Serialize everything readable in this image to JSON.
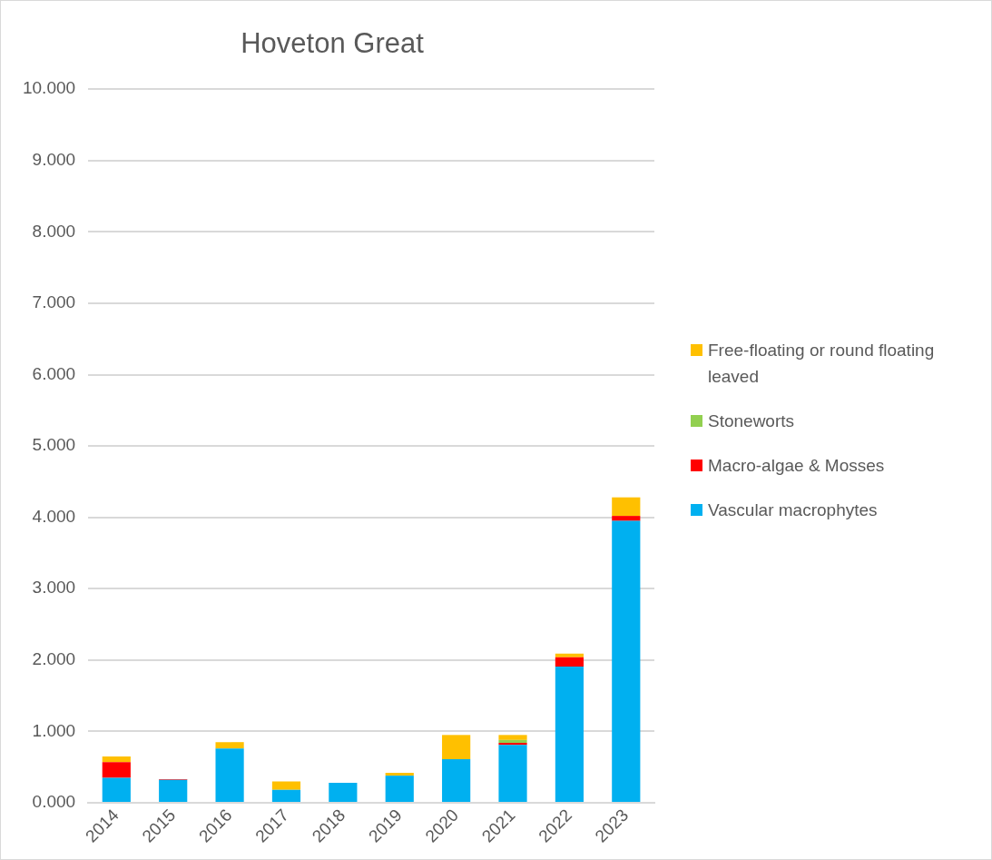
{
  "chart_data": {
    "type": "bar",
    "title": "Hoveton Great",
    "stacked": true,
    "legend": "right",
    "grid": "y",
    "categories": [
      "2014",
      "2015",
      "2016",
      "2017",
      "2018",
      "2019",
      "2020",
      "2021",
      "2022",
      "2023"
    ],
    "ylim": [
      0,
      10
    ],
    "yticks": [
      {
        "value": 0,
        "label": "0.000"
      },
      {
        "value": 1,
        "label": "1.000"
      },
      {
        "value": 2,
        "label": "2.000"
      },
      {
        "value": 3,
        "label": "3.000"
      },
      {
        "value": 4,
        "label": "4.000"
      },
      {
        "value": 5,
        "label": "5.000"
      },
      {
        "value": 6,
        "label": "6.000"
      },
      {
        "value": 7,
        "label": "7.000"
      },
      {
        "value": 8,
        "label": "8.000"
      },
      {
        "value": 9,
        "label": "9.000"
      },
      {
        "value": 10,
        "label": "10.000"
      }
    ],
    "series": [
      {
        "name": "Vascular macrophytes",
        "color": "#00b0f0",
        "values": [
          0.35,
          0.32,
          0.76,
          0.18,
          0.28,
          0.38,
          0.61,
          0.81,
          1.91,
          3.95
        ]
      },
      {
        "name": "Macro-algae & Mosses",
        "color": "#ff0000",
        "values": [
          0.22,
          0.01,
          0,
          0,
          0,
          0,
          0,
          0.03,
          0.13,
          0.07
        ]
      },
      {
        "name": "Stoneworts",
        "color": "#92d050",
        "values": [
          0,
          0,
          0,
          0,
          0,
          0,
          0,
          0.04,
          0,
          0
        ]
      },
      {
        "name": "Free-floating or round floating leaved",
        "color": "#ffc000",
        "values": [
          0.08,
          0,
          0.09,
          0.12,
          0,
          0.04,
          0.34,
          0.07,
          0.05,
          0.26
        ]
      }
    ]
  }
}
